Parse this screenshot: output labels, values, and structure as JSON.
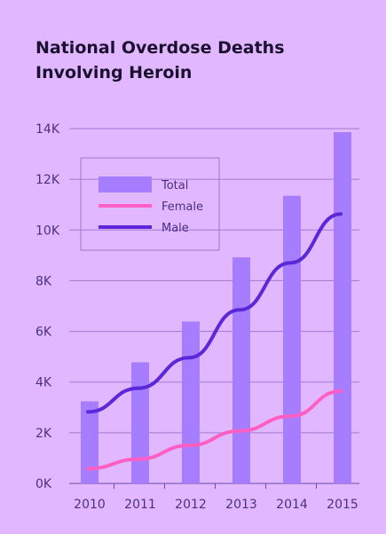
{
  "title_lines": [
    "National Overdose Deaths",
    "Involving Heroin"
  ],
  "colors": {
    "background": "#e1b8ff",
    "total": "#a77dff",
    "female": "#ff5fc3",
    "male": "#5a28d8",
    "grid": "#9f78d6",
    "text": "#4a2f84"
  },
  "chart_data": {
    "type": "bar",
    "title": "National Overdose Deaths Involving Heroin",
    "categories": [
      "2010",
      "2011",
      "2012",
      "2013",
      "2014",
      "2015"
    ],
    "yticks": [
      "0K",
      "2K",
      "4K",
      "6K",
      "8K",
      "10K",
      "12K",
      "14K"
    ],
    "ylim": [
      0,
      14000
    ],
    "grid": true,
    "legend_position": "top-left",
    "series": [
      {
        "name": "Total",
        "kind": "bar",
        "values": [
          3240,
          4780,
          6390,
          8920,
          11350,
          13860
        ]
      },
      {
        "name": "Female",
        "kind": "line",
        "values": [
          580,
          960,
          1500,
          2070,
          2650,
          3640
        ]
      },
      {
        "name": "Male",
        "kind": "line",
        "values": [
          2820,
          3760,
          4960,
          6850,
          8700,
          10630
        ]
      }
    ]
  }
}
